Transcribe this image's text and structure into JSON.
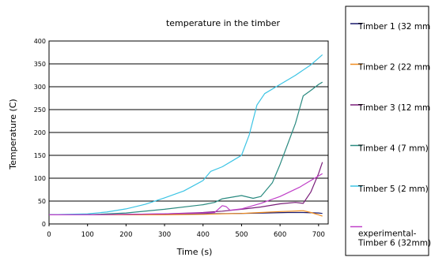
{
  "chart_data": {
    "type": "line",
    "title": "temperature in the timber",
    "xlabel": "Time (s)",
    "ylabel": "Temperature (C)",
    "xlim": [
      0,
      725
    ],
    "ylim": [
      0,
      400
    ],
    "x_ticks": [
      "0",
      "100",
      "200",
      "300",
      "400",
      "500",
      "600",
      "700"
    ],
    "y_ticks": [
      "0",
      "50",
      "100",
      "150",
      "200",
      "250",
      "300",
      "350",
      "400"
    ],
    "grid": "horizontal",
    "legend_position": "right",
    "series": [
      {
        "name": "Timber 1 (32 mm",
        "color": "#1a1a6e",
        "points": [
          [
            0,
            20
          ],
          [
            100,
            20
          ],
          [
            200,
            20
          ],
          [
            300,
            21
          ],
          [
            400,
            22
          ],
          [
            500,
            23
          ],
          [
            560,
            24
          ],
          [
            620,
            25
          ],
          [
            660,
            25
          ],
          [
            700,
            24
          ],
          [
            710,
            23
          ]
        ]
      },
      {
        "name": "Timber 2 (22 mm",
        "color": "#f08c1e",
        "points": [
          [
            0,
            20
          ],
          [
            100,
            20
          ],
          [
            200,
            20
          ],
          [
            300,
            20
          ],
          [
            400,
            21
          ],
          [
            450,
            22
          ],
          [
            500,
            23
          ],
          [
            550,
            25
          ],
          [
            600,
            27
          ],
          [
            630,
            28
          ],
          [
            660,
            29
          ],
          [
            680,
            25
          ],
          [
            700,
            20
          ],
          [
            710,
            17
          ]
        ]
      },
      {
        "name": "Timber 3 (12 mm",
        "color": "#7a1e7a",
        "points": [
          [
            0,
            20
          ],
          [
            100,
            20
          ],
          [
            200,
            21
          ],
          [
            300,
            22
          ],
          [
            400,
            25
          ],
          [
            450,
            28
          ],
          [
            500,
            32
          ],
          [
            550,
            37
          ],
          [
            600,
            44
          ],
          [
            640,
            47
          ],
          [
            660,
            45
          ],
          [
            680,
            70
          ],
          [
            700,
            110
          ],
          [
            710,
            135
          ]
        ]
      },
      {
        "name": "Timber 4 (7 mm)",
        "color": "#2a8a80",
        "points": [
          [
            0,
            20
          ],
          [
            100,
            20
          ],
          [
            200,
            24
          ],
          [
            300,
            32
          ],
          [
            400,
            42
          ],
          [
            430,
            47
          ],
          [
            450,
            55
          ],
          [
            500,
            62
          ],
          [
            530,
            56
          ],
          [
            550,
            60
          ],
          [
            580,
            90
          ],
          [
            600,
            130
          ],
          [
            620,
            175
          ],
          [
            640,
            220
          ],
          [
            660,
            280
          ],
          [
            680,
            292
          ],
          [
            700,
            305
          ],
          [
            710,
            310
          ]
        ]
      },
      {
        "name": "Timber 5 (2 mm)",
        "color": "#3cc4e4",
        "points": [
          [
            0,
            20
          ],
          [
            100,
            22
          ],
          [
            150,
            26
          ],
          [
            200,
            33
          ],
          [
            250,
            43
          ],
          [
            300,
            57
          ],
          [
            350,
            72
          ],
          [
            400,
            95
          ],
          [
            420,
            115
          ],
          [
            450,
            125
          ],
          [
            480,
            140
          ],
          [
            500,
            150
          ],
          [
            520,
            195
          ],
          [
            540,
            260
          ],
          [
            560,
            285
          ],
          [
            600,
            305
          ],
          [
            640,
            325
          ],
          [
            680,
            348
          ],
          [
            710,
            370
          ]
        ]
      },
      {
        "name": "experimental-Timber 6 (32mm)",
        "legend_lines": [
          "experimental-",
          "Timber 6 (32mm)"
        ],
        "color": "#c040c8",
        "points": [
          [
            0,
            20
          ],
          [
            100,
            20
          ],
          [
            200,
            21
          ],
          [
            300,
            22
          ],
          [
            400,
            24
          ],
          [
            430,
            25
          ],
          [
            450,
            40
          ],
          [
            460,
            38
          ],
          [
            470,
            30
          ],
          [
            500,
            33
          ],
          [
            550,
            45
          ],
          [
            600,
            60
          ],
          [
            650,
            80
          ],
          [
            680,
            95
          ],
          [
            700,
            105
          ],
          [
            710,
            110
          ]
        ]
      }
    ]
  }
}
